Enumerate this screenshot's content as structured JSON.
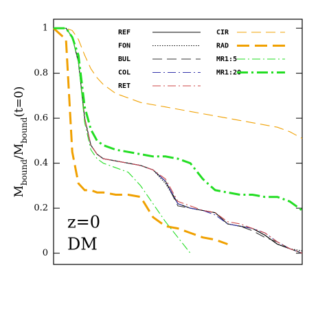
{
  "chart_data": {
    "type": "line",
    "y_label": [
      {
        "text": "M"
      },
      {
        "text": "bound",
        "sub": true
      },
      {
        "text": "/M"
      },
      {
        "text": "bound",
        "sub": true
      },
      {
        "text": "(t=0)"
      }
    ],
    "annotations": [
      "z=0",
      "DM"
    ],
    "x": [
      0,
      1,
      1.5,
      2,
      2.5,
      3,
      3.5,
      4,
      5,
      6,
      7,
      8,
      9,
      10,
      11,
      12,
      13,
      14,
      15,
      16,
      17,
      18,
      19,
      20
    ],
    "xlim": [
      0,
      20
    ],
    "ylim": [
      -0.05,
      1.04
    ],
    "yticks": [
      0,
      0.2,
      0.4,
      0.6,
      0.8,
      1
    ],
    "series": [
      {
        "name": "REF",
        "color": "#000000",
        "linestyle": "solid",
        "weight": "thin",
        "values": [
          1,
          1,
          0.96,
          0.85,
          0.6,
          0.48,
          0.44,
          0.42,
          0.41,
          0.4,
          0.39,
          0.37,
          0.32,
          0.22,
          0.2,
          0.19,
          0.18,
          0.13,
          0.12,
          0.11,
          0.08,
          0.04,
          0.02,
          0
        ]
      },
      {
        "name": "FON",
        "color": "#000000",
        "linestyle": "dotted",
        "weight": "thin",
        "values": [
          1,
          1,
          0.96,
          0.85,
          0.6,
          0.48,
          0.44,
          0.42,
          0.41,
          0.4,
          0.39,
          0.37,
          0.31,
          0.22,
          0.2,
          0.19,
          0.18,
          0.13,
          0.12,
          0.11,
          0.08,
          0.04,
          0.02,
          0.01
        ]
      },
      {
        "name": "BUL",
        "color": "#333333",
        "linestyle": "dashed",
        "weight": "thin",
        "values": [
          1,
          1,
          0.96,
          0.85,
          0.6,
          0.48,
          0.44,
          0.42,
          0.41,
          0.4,
          0.39,
          0.37,
          0.32,
          0.21,
          0.2,
          0.19,
          0.18,
          0.13,
          0.12,
          0.1,
          0.07,
          0.05,
          0.02,
          null
        ]
      },
      {
        "name": "COL",
        "color": "#3333aa",
        "linestyle": "dashdot",
        "weight": "thin",
        "values": [
          1,
          1,
          0.96,
          0.85,
          0.6,
          0.48,
          0.44,
          0.42,
          0.41,
          0.4,
          0.39,
          0.37,
          0.32,
          0.22,
          0.2,
          0.19,
          0.17,
          0.13,
          0.12,
          0.11,
          0.09,
          0.05,
          0.02,
          0
        ]
      },
      {
        "name": "RET",
        "color": "#cc4444",
        "linestyle": "dashdot",
        "weight": "thin",
        "values": [
          1,
          1,
          0.96,
          0.85,
          0.6,
          0.48,
          0.44,
          0.42,
          0.41,
          0.4,
          0.39,
          0.37,
          0.33,
          0.23,
          0.21,
          0.19,
          0.18,
          0.14,
          0.13,
          0.11,
          0.09,
          0.05,
          0.02,
          0
        ]
      },
      {
        "name": "CIR",
        "color": "#f0a000",
        "linestyle": "dashed",
        "weight": "thin",
        "values": [
          1,
          1,
          0.99,
          0.95,
          0.88,
          0.82,
          0.78,
          0.75,
          0.71,
          0.69,
          0.67,
          0.66,
          0.65,
          0.64,
          0.63,
          0.62,
          0.61,
          0.6,
          0.59,
          0.58,
          0.57,
          0.56,
          0.54,
          0.51
        ]
      },
      {
        "name": "RAD",
        "color": "#f0a000",
        "linestyle": "dashed",
        "weight": "thick",
        "values": [
          1,
          0.95,
          0.45,
          0.31,
          0.28,
          0.28,
          0.27,
          0.27,
          0.26,
          0.26,
          0.25,
          0.16,
          0.12,
          0.11,
          0.09,
          0.07,
          0.06,
          0.04,
          null,
          null,
          null,
          null,
          null,
          null
        ]
      },
      {
        "name": "MR1:5",
        "color": "#22dd22",
        "linestyle": "dashdot",
        "weight": "thin",
        "values": [
          1,
          1,
          0.96,
          0.85,
          0.58,
          0.46,
          0.42,
          0.4,
          0.38,
          0.36,
          0.3,
          0.22,
          0.14,
          0.07,
          0,
          null,
          null,
          null,
          null,
          null,
          null,
          null,
          null,
          null
        ]
      },
      {
        "name": "MR1:20",
        "color": "#22dd22",
        "linestyle": "dashdot",
        "weight": "thick",
        "values": [
          1,
          1,
          0.96,
          0.88,
          0.65,
          0.55,
          0.5,
          0.48,
          0.46,
          0.45,
          0.44,
          0.43,
          0.43,
          0.42,
          0.4,
          0.33,
          0.28,
          0.27,
          0.26,
          0.26,
          0.25,
          0.25,
          0.23,
          0.19
        ]
      }
    ]
  }
}
